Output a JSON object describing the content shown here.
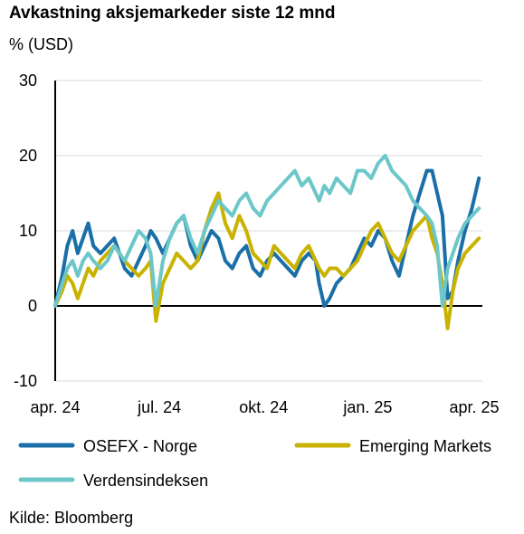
{
  "chart_data": {
    "type": "line",
    "title": "Avkastning aksjemarkeder siste 12 mnd",
    "ylabel": "% (USD)",
    "source": "Kilde: Bloomberg",
    "ylim": [
      -10,
      30
    ],
    "yticks": [
      30,
      20,
      10,
      0,
      -10
    ],
    "x_tick_labels": [
      "apr. 24",
      "jul. 24",
      "okt. 24",
      "jan. 25",
      "apr. 25"
    ],
    "x_tick_positions": [
      0,
      3,
      6,
      9,
      12
    ],
    "xlim": [
      0,
      12.3
    ],
    "grid": true,
    "legend_position": "bottom",
    "series": [
      {
        "name": "OSEFX - Norge",
        "color": "#1a6fa8",
        "x": [
          0,
          0.2,
          0.35,
          0.5,
          0.65,
          0.8,
          0.95,
          1.1,
          1.3,
          1.5,
          1.7,
          1.85,
          2.0,
          2.2,
          2.4,
          2.6,
          2.75,
          2.9,
          3.1,
          3.3,
          3.5,
          3.7,
          3.9,
          4.1,
          4.3,
          4.5,
          4.7,
          4.9,
          5.1,
          5.3,
          5.5,
          5.7,
          5.9,
          6.1,
          6.3,
          6.5,
          6.7,
          6.9,
          7.1,
          7.3,
          7.5,
          7.6,
          7.75,
          7.9,
          8.1,
          8.3,
          8.5,
          8.7,
          8.9,
          9.1,
          9.3,
          9.5,
          9.7,
          9.9,
          10.1,
          10.3,
          10.5,
          10.7,
          10.85,
          11.0,
          11.15,
          11.3,
          11.45,
          11.6,
          11.8,
          12.0,
          12.2
        ],
        "values": [
          0,
          4,
          8,
          10,
          7,
          9,
          11,
          8,
          7,
          8,
          9,
          7,
          5,
          4,
          6,
          8,
          10,
          9,
          7,
          9,
          11,
          12,
          8,
          6,
          8,
          10,
          9,
          6,
          5,
          7,
          8,
          5,
          4,
          6,
          7,
          6,
          5,
          4,
          6,
          7,
          6,
          3,
          0,
          1,
          3,
          4,
          5,
          7,
          9,
          8,
          10,
          9,
          6,
          4,
          8,
          12,
          15,
          18,
          18,
          15,
          12,
          1,
          2,
          6,
          10,
          13,
          17
        ]
      },
      {
        "name": "Emerging Markets",
        "color": "#c9b300",
        "x": [
          0,
          0.2,
          0.35,
          0.5,
          0.65,
          0.8,
          0.95,
          1.1,
          1.3,
          1.5,
          1.7,
          1.85,
          2.0,
          2.2,
          2.4,
          2.6,
          2.75,
          2.9,
          3.1,
          3.3,
          3.5,
          3.7,
          3.9,
          4.1,
          4.3,
          4.5,
          4.7,
          4.9,
          5.1,
          5.3,
          5.5,
          5.7,
          5.9,
          6.1,
          6.3,
          6.5,
          6.7,
          6.9,
          7.1,
          7.3,
          7.5,
          7.6,
          7.75,
          7.9,
          8.1,
          8.3,
          8.5,
          8.7,
          8.9,
          9.1,
          9.3,
          9.5,
          9.7,
          9.9,
          10.1,
          10.3,
          10.5,
          10.7,
          10.85,
          11.0,
          11.15,
          11.3,
          11.45,
          11.6,
          11.8,
          12.0,
          12.2
        ],
        "values": [
          0,
          2,
          4,
          3,
          1,
          3,
          5,
          4,
          6,
          7,
          8,
          7,
          6,
          5,
          4,
          5,
          6,
          -2,
          3,
          5,
          7,
          6,
          5,
          6,
          10,
          13,
          15,
          11,
          9,
          12,
          10,
          7,
          6,
          5,
          8,
          7,
          6,
          5,
          7,
          8,
          6,
          5,
          4,
          5,
          5,
          4,
          5,
          6,
          8,
          10,
          11,
          9,
          7,
          6,
          8,
          10,
          11,
          12,
          9,
          7,
          3,
          -3,
          2,
          5,
          7,
          8,
          9
        ]
      },
      {
        "name": "Verdensindeksen",
        "color": "#6cc7c9",
        "x": [
          0,
          0.2,
          0.35,
          0.5,
          0.65,
          0.8,
          0.95,
          1.1,
          1.3,
          1.5,
          1.7,
          1.85,
          2.0,
          2.2,
          2.4,
          2.6,
          2.75,
          2.9,
          3.1,
          3.3,
          3.5,
          3.7,
          3.9,
          4.1,
          4.3,
          4.5,
          4.7,
          4.9,
          5.1,
          5.3,
          5.5,
          5.7,
          5.9,
          6.1,
          6.3,
          6.5,
          6.7,
          6.9,
          7.1,
          7.3,
          7.5,
          7.6,
          7.75,
          7.9,
          8.1,
          8.3,
          8.5,
          8.7,
          8.9,
          9.1,
          9.3,
          9.5,
          9.7,
          9.9,
          10.1,
          10.3,
          10.5,
          10.7,
          10.85,
          11.0,
          11.15,
          11.3,
          11.45,
          11.6,
          11.8,
          12.0,
          12.2
        ],
        "values": [
          0,
          3,
          5,
          6,
          4,
          6,
          7,
          6,
          5,
          6,
          8,
          7,
          6,
          8,
          10,
          9,
          7,
          0,
          6,
          9,
          11,
          12,
          9,
          7,
          10,
          12,
          14,
          13,
          12,
          14,
          15,
          13,
          12,
          14,
          15,
          16,
          17,
          18,
          16,
          17,
          15,
          14,
          16,
          15,
          17,
          16,
          15,
          18,
          18,
          17,
          19,
          20,
          18,
          17,
          16,
          14,
          13,
          12,
          11,
          8,
          0,
          5,
          7,
          9,
          11,
          12,
          13
        ]
      }
    ]
  }
}
